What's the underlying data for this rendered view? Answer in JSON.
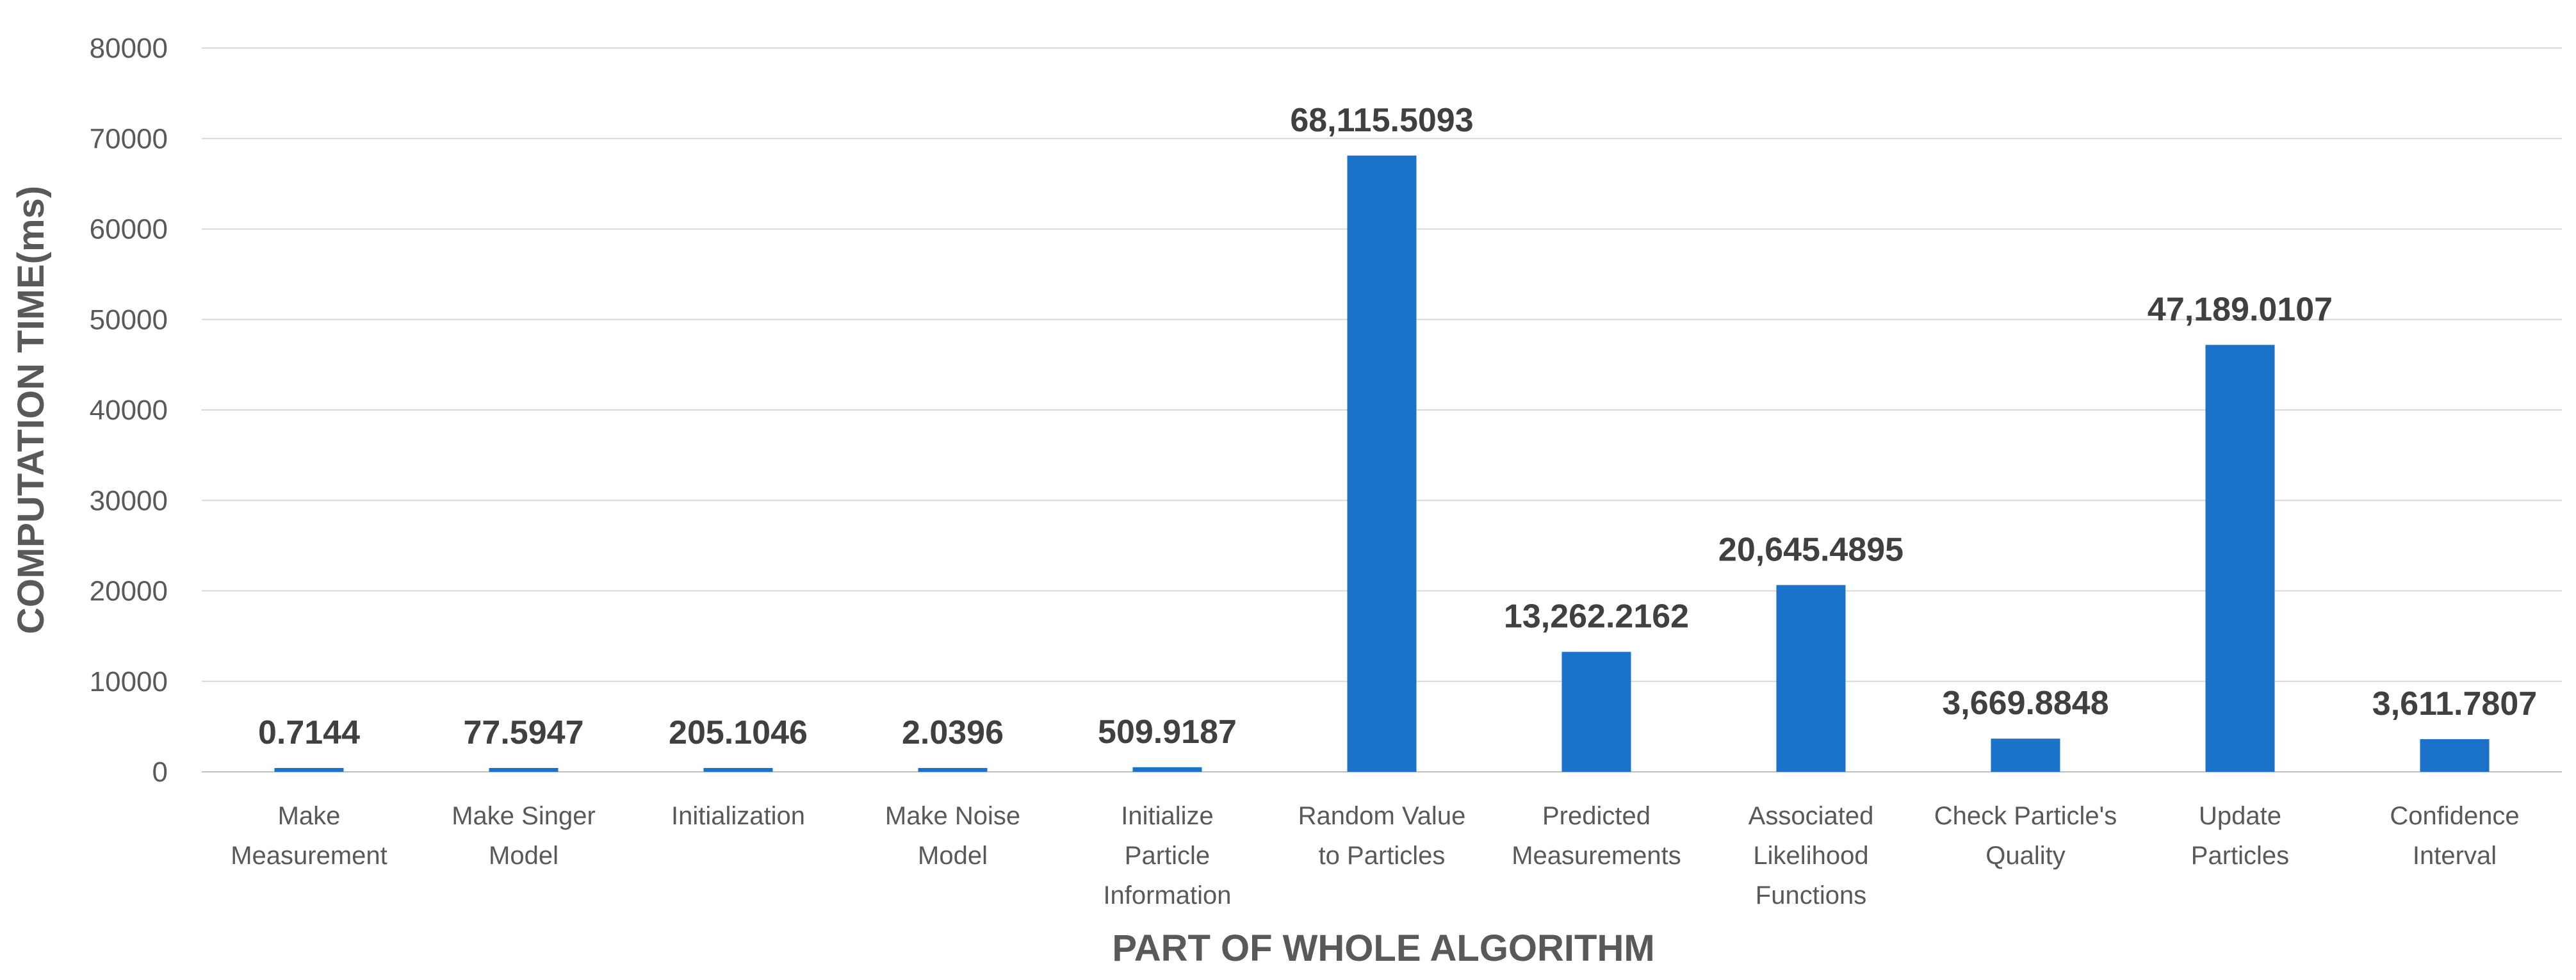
{
  "chart_data": {
    "type": "bar",
    "categories": [
      [
        "Make",
        "Measurement"
      ],
      [
        "Make Singer",
        "Model"
      ],
      [
        "Initialization"
      ],
      [
        "Make Noise",
        "Model"
      ],
      [
        "Initialize",
        "Particle",
        "Information"
      ],
      [
        "Random Value",
        "to Particles"
      ],
      [
        "Predicted",
        "Measurements"
      ],
      [
        "Associated",
        "Likelihood",
        "Functions"
      ],
      [
        "Check Particle's",
        "Quality"
      ],
      [
        "Update",
        "Particles"
      ],
      [
        "Confidence",
        "Interval"
      ]
    ],
    "values": [
      0.7144,
      77.5947,
      205.1046,
      2.0396,
      509.9187,
      68115.5093,
      13262.2162,
      20645.4895,
      3669.8848,
      47189.0107,
      3611.7807
    ],
    "data_labels": [
      "0.7144",
      "77.5947",
      "205.1046",
      "2.0396",
      "509.9187",
      "68,115.5093",
      "13,262.2162",
      "20,645.4895",
      "3,669.8848",
      "47,189.0107",
      "3,611.7807"
    ],
    "xlabel": "PART OF WHOLE ALGORITHM",
    "ylabel": "COMPUTATION TIME(ms)",
    "ylim": [
      0,
      80000
    ],
    "yticks": [
      "0",
      "10000",
      "20000",
      "30000",
      "40000",
      "50000",
      "60000",
      "70000",
      "80000"
    ],
    "grid": true,
    "bar_color": "#1a73c8"
  }
}
